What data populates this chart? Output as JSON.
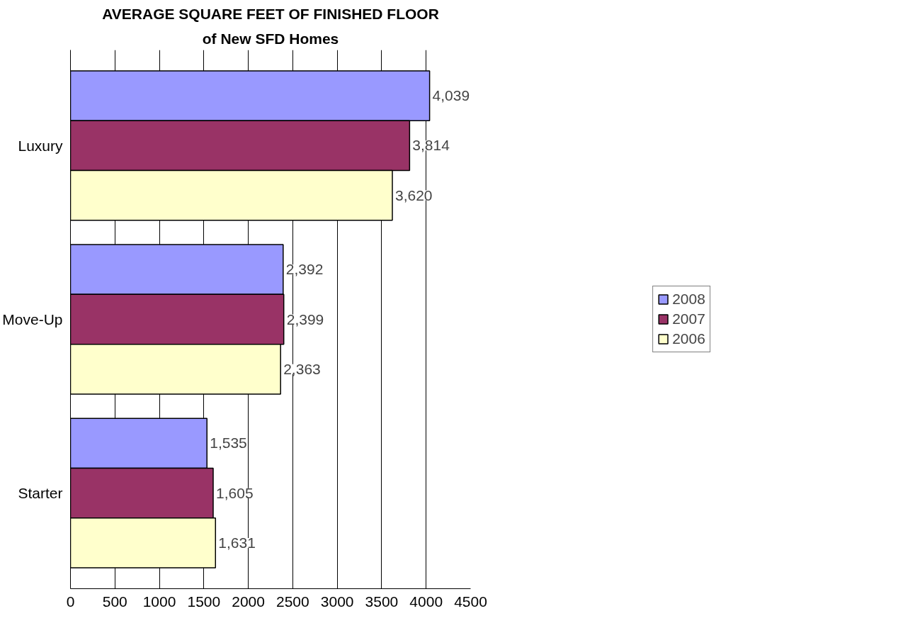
{
  "chart_data": {
    "type": "bar",
    "orientation": "horizontal",
    "title": "AVERAGE SQUARE FEET OF FINISHED FLOOR",
    "subtitle": "of New SFD Homes",
    "categories": [
      "Luxury",
      "Move-Up",
      "Starter"
    ],
    "series": [
      {
        "name": "2008",
        "color": "#9999ff",
        "values": [
          4039,
          2392,
          1535
        ],
        "value_labels": [
          "4,039",
          "2,392",
          "1,535"
        ]
      },
      {
        "name": "2007",
        "color": "#993366",
        "values": [
          3814,
          2399,
          1605
        ],
        "value_labels": [
          "3,814",
          "2,399",
          "1,605"
        ]
      },
      {
        "name": "2006",
        "color": "#ffffcc",
        "values": [
          3620,
          2363,
          1631
        ],
        "value_labels": [
          "3,620",
          "2,363",
          "1,631"
        ]
      }
    ],
    "xlim": [
      0,
      4500
    ],
    "xticks": [
      0,
      500,
      1000,
      1500,
      2000,
      2500,
      3000,
      3500,
      4000,
      4500
    ],
    "grid": "x",
    "legend": "right"
  }
}
